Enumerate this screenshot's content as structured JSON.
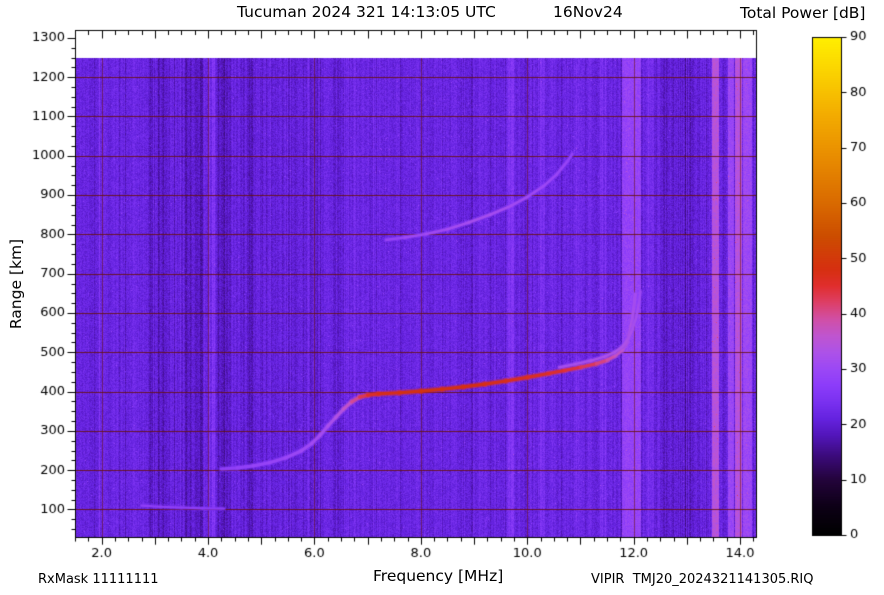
{
  "header": {
    "title": "Tucuman 2024 321 14:13:05 UTC",
    "date": "16Nov24",
    "colorbar_title": "Total Power [dB]"
  },
  "footer": {
    "rx_mask": "RxMask 11111111",
    "file_label": "VIPIR  TMJ20_2024321141305.RIQ"
  },
  "chart_data": {
    "type": "heatmap",
    "title": "Tucuman 2024 321 14:13:05 UTC",
    "date_label": "16Nov24",
    "xlabel": "Frequency [MHz]",
    "ylabel": "Range [km]",
    "colorbar_label": "Total Power [dB]",
    "x_range": [
      1.5,
      14.3
    ],
    "x_minor_step": 0.25,
    "x_ticks": [
      {
        "v": 2.0,
        "label": "2.0"
      },
      {
        "v": 4.0,
        "label": "4.0"
      },
      {
        "v": 6.0,
        "label": "6.0"
      },
      {
        "v": 8.0,
        "label": "8.0"
      },
      {
        "v": 10.0,
        "label": "10.0"
      },
      {
        "v": 12.0,
        "label": "12.0"
      },
      {
        "v": 14.0,
        "label": "14.0"
      }
    ],
    "y_range": [
      30,
      1320
    ],
    "y_minor_step": 25,
    "y_ticks": [
      {
        "v": 100,
        "label": "100"
      },
      {
        "v": 200,
        "label": "200"
      },
      {
        "v": 300,
        "label": "300"
      },
      {
        "v": 400,
        "label": "400"
      },
      {
        "v": 500,
        "label": "500"
      },
      {
        "v": 600,
        "label": "600"
      },
      {
        "v": 700,
        "label": "700"
      },
      {
        "v": 800,
        "label": "800"
      },
      {
        "v": 900,
        "label": "900"
      },
      {
        "v": 1000,
        "label": "1000"
      },
      {
        "v": 1100,
        "label": "1100"
      },
      {
        "v": 1200,
        "label": "1200"
      },
      {
        "v": 1300,
        "label": "1300"
      }
    ],
    "data_extent_km": [
      30,
      1250
    ],
    "background_power_db": 21.5,
    "grid_color": "#69120c",
    "colorbar": {
      "min": 0,
      "max": 90,
      "ticks": [
        {
          "v": 0,
          "label": "0"
        },
        {
          "v": 10,
          "label": "10"
        },
        {
          "v": 20,
          "label": "20"
        },
        {
          "v": 30,
          "label": "30"
        },
        {
          "v": 40,
          "label": "40"
        },
        {
          "v": 50,
          "label": "50"
        },
        {
          "v": 60,
          "label": "60"
        },
        {
          "v": 70,
          "label": "70"
        },
        {
          "v": 80,
          "label": "80"
        },
        {
          "v": 90,
          "label": "90"
        }
      ],
      "stops": [
        {
          "v": 0,
          "c": "#000000"
        },
        {
          "v": 5,
          "c": "#0d0016"
        },
        {
          "v": 10,
          "c": "#24043c"
        },
        {
          "v": 14,
          "c": "#3a0a78"
        },
        {
          "v": 18,
          "c": "#5316bb"
        },
        {
          "v": 21,
          "c": "#6523e0"
        },
        {
          "v": 24,
          "c": "#7a31f0"
        },
        {
          "v": 27,
          "c": "#8c3cfa"
        },
        {
          "v": 30,
          "c": "#9c48f5"
        },
        {
          "v": 33,
          "c": "#ad52e8"
        },
        {
          "v": 36,
          "c": "#c055cf"
        },
        {
          "v": 39,
          "c": "#d14fa5"
        },
        {
          "v": 42,
          "c": "#dd3f66"
        },
        {
          "v": 45,
          "c": "#e02e2e"
        },
        {
          "v": 48,
          "c": "#d62f10"
        },
        {
          "v": 54,
          "c": "#cc4d00"
        },
        {
          "v": 60,
          "c": "#d96a00"
        },
        {
          "v": 68,
          "c": "#e88b00"
        },
        {
          "v": 76,
          "c": "#f3ac00"
        },
        {
          "v": 84,
          "c": "#fbd400"
        },
        {
          "v": 90,
          "c": "#ffef00"
        }
      ]
    },
    "rfi_bands": [
      {
        "f0": 1.95,
        "f1": 2.08,
        "delta": 1.5
      },
      {
        "f0": 2.55,
        "f1": 2.63,
        "delta": 1.2
      },
      {
        "f0": 2.9,
        "f1": 3.95,
        "delta": -1.6,
        "noise": 2.5
      },
      {
        "f0": 4.0,
        "f1": 4.14,
        "delta": 3.0
      },
      {
        "f0": 4.18,
        "f1": 4.45,
        "delta": -2.0,
        "noise": 1.5
      },
      {
        "f0": 4.5,
        "f1": 6.7,
        "delta": -0.7,
        "noise": 1.2
      },
      {
        "f0": 4.6,
        "f1": 4.85,
        "delta": -1.2
      },
      {
        "f0": 5.1,
        "f1": 5.18,
        "delta": 1.5
      },
      {
        "f0": 6.55,
        "f1": 6.62,
        "delta": 1.5
      },
      {
        "f0": 7.18,
        "f1": 7.25,
        "delta": 1.3
      },
      {
        "f0": 8.35,
        "f1": 8.42,
        "delta": 1.2
      },
      {
        "f0": 9.1,
        "f1": 9.17,
        "delta": 1.4
      },
      {
        "f0": 9.62,
        "f1": 9.76,
        "delta": 2.8
      },
      {
        "f0": 10.2,
        "f1": 10.34,
        "delta": 2.4
      },
      {
        "f0": 10.9,
        "f1": 10.97,
        "delta": 1.5
      },
      {
        "f0": 11.36,
        "f1": 11.5,
        "delta": 1.8
      },
      {
        "f0": 11.78,
        "f1": 12.14,
        "power": 28.5
      },
      {
        "f0": 12.27,
        "f1": 12.38,
        "delta": 2.2
      },
      {
        "f0": 12.55,
        "f1": 13.25,
        "delta": -1.2,
        "noise": 1.8
      },
      {
        "f0": 13.47,
        "f1": 13.6,
        "power": 34.5
      },
      {
        "f0": 13.77,
        "f1": 13.88,
        "power": 29.5
      },
      {
        "f0": 13.9,
        "f1": 14.03,
        "power": 34.5
      },
      {
        "f0": 14.05,
        "f1": 14.23,
        "power": 30.0
      }
    ],
    "traces": [
      {
        "name": "F-region O-mode echo",
        "width": 3.2,
        "points": [
          [
            4.25,
            203,
            26
          ],
          [
            4.55,
            206,
            26
          ],
          [
            4.85,
            211,
            27
          ],
          [
            5.15,
            219,
            27
          ],
          [
            5.45,
            231,
            28
          ],
          [
            5.75,
            249,
            28
          ],
          [
            5.95,
            268,
            29
          ],
          [
            6.1,
            288,
            29
          ],
          [
            6.25,
            312,
            30
          ],
          [
            6.4,
            334,
            31
          ],
          [
            6.55,
            356,
            33
          ],
          [
            6.7,
            374,
            36
          ],
          [
            6.85,
            386,
            40
          ],
          [
            7.0,
            391,
            43
          ],
          [
            7.2,
            394,
            45
          ],
          [
            7.6,
            397,
            46
          ],
          [
            8.0,
            401,
            47
          ],
          [
            8.4,
            406,
            47
          ],
          [
            8.8,
            412,
            46
          ],
          [
            9.2,
            419,
            46
          ],
          [
            9.6,
            427,
            45
          ],
          [
            10.0,
            436,
            45
          ],
          [
            10.4,
            446,
            44
          ],
          [
            10.7,
            454,
            43
          ],
          [
            11.0,
            462,
            42
          ],
          [
            11.3,
            471,
            40
          ],
          [
            11.5,
            480,
            38
          ],
          [
            11.65,
            491,
            36
          ],
          [
            11.78,
            505,
            34
          ],
          [
            11.87,
            525,
            33
          ],
          [
            11.93,
            550,
            32
          ],
          [
            11.97,
            578,
            31
          ],
          [
            12.0,
            610,
            30
          ],
          [
            12.03,
            648,
            29
          ]
        ]
      },
      {
        "name": "F-region X-mode echo",
        "width": 2.4,
        "points": [
          [
            10.6,
            462,
            30
          ],
          [
            10.9,
            470,
            30
          ],
          [
            11.2,
            479,
            31
          ],
          [
            11.45,
            489,
            31
          ],
          [
            11.65,
            501,
            31
          ],
          [
            11.8,
            516,
            31
          ],
          [
            11.9,
            535,
            31
          ],
          [
            11.98,
            558,
            30
          ],
          [
            12.05,
            590,
            30
          ],
          [
            12.1,
            625,
            29
          ],
          [
            12.13,
            655,
            28
          ]
        ]
      },
      {
        "name": "F-region second-hop echo",
        "width": 2.6,
        "points": [
          [
            7.35,
            786,
            27
          ],
          [
            7.7,
            792,
            28
          ],
          [
            8.1,
            801,
            29
          ],
          [
            8.5,
            813,
            29
          ],
          [
            8.9,
            830,
            30
          ],
          [
            9.3,
            850,
            30
          ],
          [
            9.7,
            873,
            29
          ],
          [
            10.0,
            895,
            29
          ],
          [
            10.3,
            922,
            28
          ],
          [
            10.55,
            952,
            28
          ],
          [
            10.75,
            985,
            27
          ],
          [
            10.85,
            1005,
            26
          ]
        ]
      },
      {
        "name": "low-range echo",
        "width": 2.2,
        "points": [
          [
            2.75,
            110,
            25.5
          ],
          [
            3.1,
            107,
            26
          ],
          [
            3.5,
            105,
            26
          ],
          [
            3.9,
            103,
            25.5
          ],
          [
            4.3,
            102,
            25
          ]
        ]
      }
    ]
  }
}
